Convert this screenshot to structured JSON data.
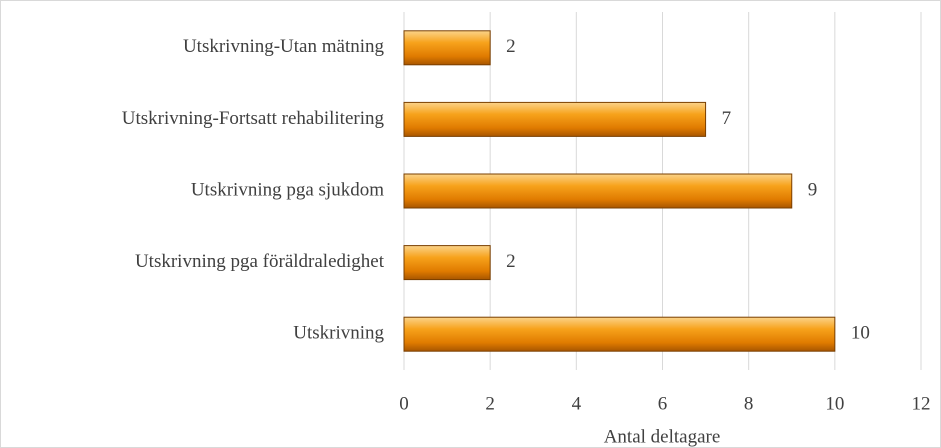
{
  "chart_data": {
    "type": "bar",
    "orientation": "horizontal",
    "x_label": "Antal deltagare",
    "categories": [
      "Utskrivning-Utan mätning",
      "Utskrivning-Fortsatt rehabilitering",
      "Utskrivning pga sjukdom",
      "Utskrivning pga föräldraledighet",
      "Utskrivning"
    ],
    "values": [
      2,
      7,
      9,
      2,
      10
    ],
    "color": "#f28c00",
    "xlim": [
      0,
      12
    ],
    "xticks": [
      0,
      2,
      4,
      6,
      8,
      10,
      12
    ],
    "grid": true
  }
}
